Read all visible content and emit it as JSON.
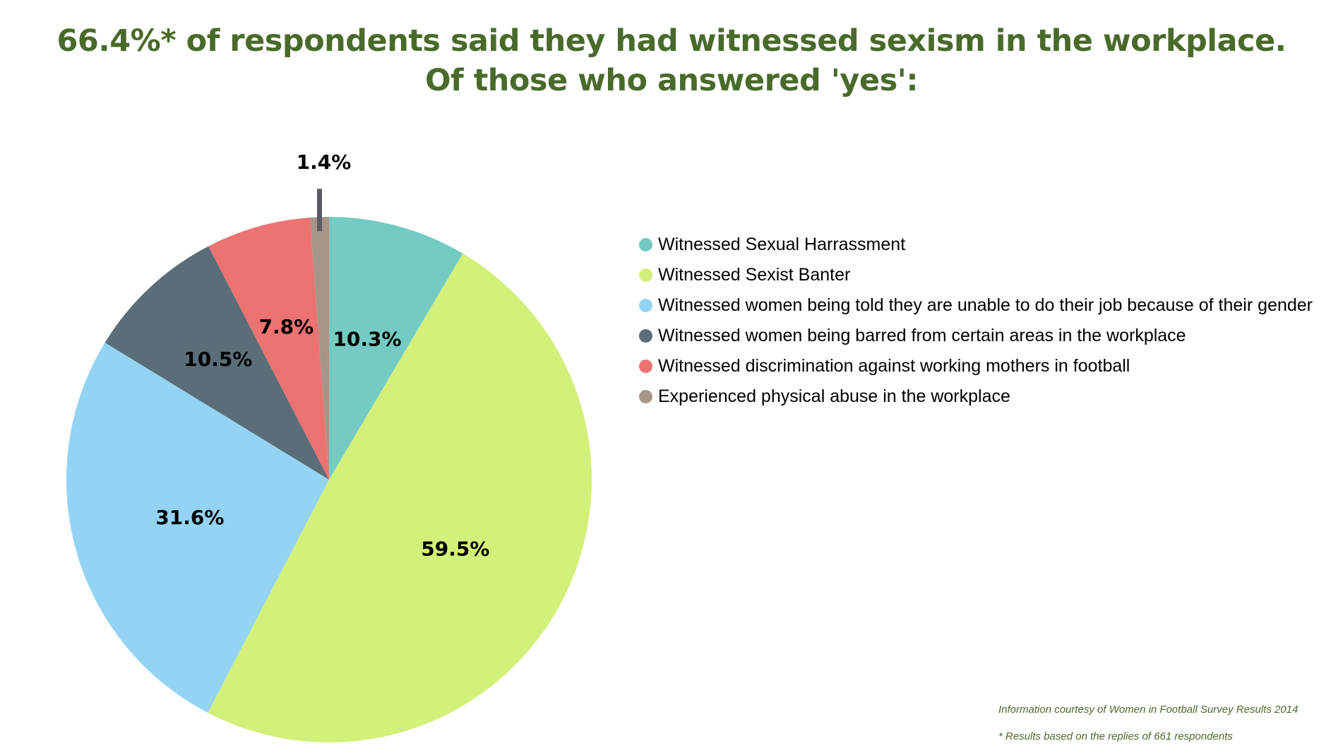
{
  "header": {
    "title_line1": "66.4%* of respondents said they had witnessed sexism in the workplace.",
    "title_line2": "Of those who answered 'yes':"
  },
  "chart_data": {
    "type": "pie",
    "title": "66.4%* of respondents said they had witnessed sexism in the workplace. Of those who answered 'yes':",
    "slices": [
      {
        "label": "Witnessed Sexual Harrassment",
        "value": 10.3,
        "display": "10.3%",
        "color": "#74cbc3"
      },
      {
        "label": "Witnessed Sexist Banter",
        "value": 59.5,
        "display": "59.5%",
        "color": "#d3f07a"
      },
      {
        "label": "Witnessed women being told they are unable to do their job because of their gender",
        "value": 31.6,
        "display": "31.6%",
        "color": "#95d3f5"
      },
      {
        "label": "Witnessed women being barred from certain areas in the workplace",
        "value": 10.5,
        "display": "10.5%",
        "color": "#5a6d78"
      },
      {
        "label": "Witnessed discrimination against working mothers in football",
        "value": 7.8,
        "display": "7.8%",
        "color": "#ec7372"
      },
      {
        "label": "Experienced physical abuse in the workplace",
        "value": 1.4,
        "display": "1.4%",
        "color": "#a59689"
      }
    ],
    "legend_position": "right"
  },
  "footnotes": {
    "source": "Information courtesy of Women in Football Survey Results 2014",
    "basis": "* Results based on the replies of 661 respondents"
  }
}
